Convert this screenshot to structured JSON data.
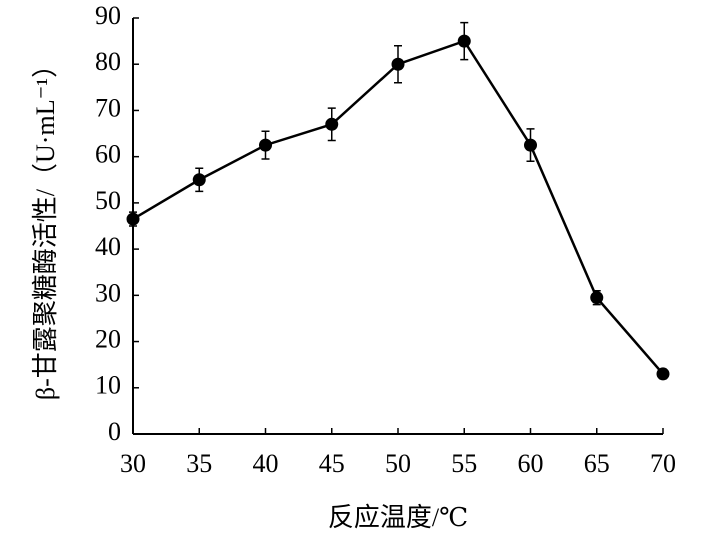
{
  "chart_data": {
    "type": "line",
    "x_label": "反应温度/℃",
    "y_label": "β-甘露聚糖酶活性/（U·mL⁻¹）",
    "x": [
      30,
      35,
      40,
      45,
      50,
      55,
      60,
      65,
      70
    ],
    "series": [
      {
        "color": "#000000",
        "values": [
          46.5,
          55,
          62.5,
          67,
          80,
          85,
          62.5,
          29.5,
          13
        ],
        "errors": [
          1.5,
          2.5,
          3,
          3.5,
          4,
          4,
          3.5,
          1.5,
          1
        ]
      }
    ],
    "xlim": [
      30,
      70
    ],
    "xticks": [
      30,
      35,
      40,
      45,
      50,
      55,
      60,
      65,
      70
    ],
    "ylim": [
      0,
      90
    ],
    "yticks": [
      0,
      10,
      20,
      30,
      40,
      50,
      60,
      70,
      80,
      90
    ],
    "grid": false
  }
}
